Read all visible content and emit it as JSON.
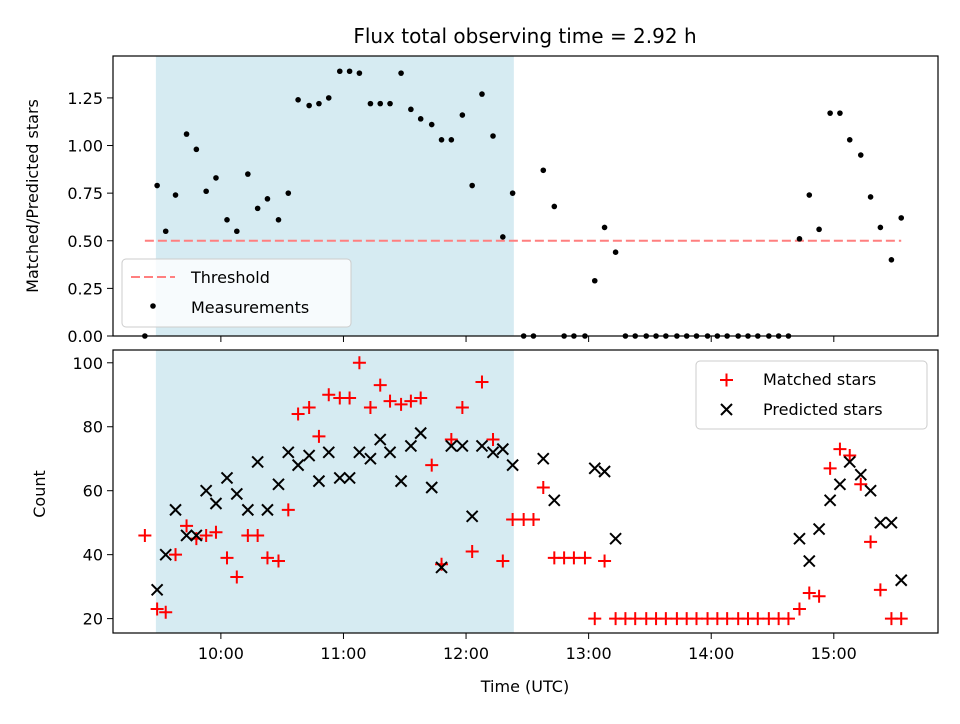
{
  "chart_data": [
    {
      "type": "scatter",
      "title": "Flux total observing time = 2.92 h",
      "xlabel": "",
      "ylabel": "Matched/Predicted stars",
      "ylim": [
        0,
        1.47
      ],
      "yticks": [
        "0.00",
        "0.25",
        "0.50",
        "0.75",
        "1.00",
        "1.25"
      ],
      "shaded_interval_hours": [
        9.47,
        12.39
      ],
      "shade_color": "#add8e6",
      "threshold": {
        "name": "Threshold",
        "value": 0.5,
        "x_range_hours": [
          9.38,
          15.55
        ],
        "color": "#ff7f7f"
      },
      "legend": [
        "Threshold",
        "Measurements"
      ],
      "legend_position": "lower-left",
      "series": [
        {
          "name": "Measurements",
          "marker": "dot",
          "color": "#000000",
          "x": [
            9.38,
            9.48,
            9.55,
            9.63,
            9.72,
            9.8,
            9.88,
            9.96,
            10.05,
            10.13,
            10.22,
            10.3,
            10.38,
            10.47,
            10.55,
            10.63,
            10.72,
            10.8,
            10.88,
            10.97,
            11.05,
            11.13,
            11.22,
            11.3,
            11.38,
            11.47,
            11.55,
            11.63,
            11.72,
            11.8,
            11.88,
            11.97,
            12.05,
            12.13,
            12.22,
            12.3,
            12.38,
            12.47,
            12.55,
            12.63,
            12.72,
            12.8,
            12.88,
            12.97,
            13.05,
            13.13,
            13.22,
            13.3,
            13.38,
            13.47,
            13.55,
            13.63,
            13.72,
            13.8,
            13.88,
            13.97,
            14.05,
            14.13,
            14.22,
            14.3,
            14.38,
            14.47,
            14.55,
            14.63,
            14.72,
            14.8,
            14.88,
            14.97,
            15.05,
            15.13,
            15.22,
            15.3,
            15.38,
            15.47,
            15.55
          ],
          "values": [
            0.0,
            0.79,
            0.55,
            0.74,
            1.06,
            0.98,
            0.76,
            0.83,
            0.61,
            0.55,
            0.85,
            0.67,
            0.72,
            0.61,
            0.75,
            1.24,
            1.21,
            1.22,
            1.25,
            1.39,
            1.39,
            1.38,
            1.22,
            1.22,
            1.22,
            1.38,
            1.19,
            1.14,
            1.11,
            1.03,
            1.03,
            1.16,
            0.79,
            1.27,
            1.05,
            0.52,
            0.75,
            0.0,
            0.0,
            0.87,
            0.68,
            0.0,
            0.0,
            0.0,
            0.29,
            0.57,
            0.44,
            0.0,
            0.0,
            0.0,
            0.0,
            0.0,
            0.0,
            0.0,
            0.0,
            0.0,
            0.0,
            0.0,
            0.0,
            0.0,
            0.0,
            0.0,
            0.0,
            0.0,
            0.51,
            0.74,
            0.56,
            1.17,
            1.17,
            1.03,
            0.95,
            0.73,
            0.57,
            0.4,
            0.62
          ]
        }
      ]
    },
    {
      "type": "scatter",
      "title": "",
      "xlabel": "Time (UTC)",
      "ylabel": "Count",
      "ylim": [
        15.5,
        104
      ],
      "yticks": [
        "20",
        "40",
        "60",
        "80",
        "100"
      ],
      "xlim_hours": [
        9.12,
        15.85
      ],
      "xticks_hours": [
        10,
        11,
        12,
        13,
        14,
        15
      ],
      "xtick_labels": [
        "10:00",
        "11:00",
        "12:00",
        "13:00",
        "14:00",
        "15:00"
      ],
      "shaded_interval_hours": [
        9.47,
        12.39
      ],
      "legend": [
        "Matched stars",
        "Predicted stars"
      ],
      "legend_position": "upper-right",
      "series": [
        {
          "name": "Matched stars",
          "marker": "plus",
          "color": "#ff0000",
          "x": [
            9.38,
            9.48,
            9.55,
            9.63,
            9.72,
            9.8,
            9.88,
            9.96,
            10.05,
            10.13,
            10.22,
            10.3,
            10.38,
            10.47,
            10.55,
            10.63,
            10.72,
            10.8,
            10.88,
            10.97,
            11.05,
            11.13,
            11.22,
            11.3,
            11.38,
            11.47,
            11.55,
            11.63,
            11.72,
            11.8,
            11.88,
            11.97,
            12.05,
            12.13,
            12.22,
            12.3,
            12.38,
            12.47,
            12.55,
            12.63,
            12.72,
            12.8,
            12.88,
            12.97,
            13.05,
            13.13,
            13.22,
            13.3,
            13.38,
            13.47,
            13.55,
            13.63,
            13.72,
            13.8,
            13.88,
            13.97,
            14.05,
            14.13,
            14.22,
            14.3,
            14.38,
            14.47,
            14.55,
            14.63,
            14.72,
            14.8,
            14.88,
            14.97,
            15.05,
            15.13,
            15.22,
            15.3,
            15.38,
            15.47,
            15.55
          ],
          "values": [
            46,
            23,
            22,
            40,
            49,
            45,
            46,
            47,
            39,
            33,
            46,
            46,
            39,
            38,
            54,
            84,
            86,
            77,
            90,
            89,
            89,
            100,
            86,
            93,
            88,
            87,
            88,
            89,
            68,
            37,
            76,
            86,
            41,
            94,
            76,
            38,
            51,
            51,
            51,
            61,
            39,
            39,
            39,
            39,
            20,
            38,
            20,
            20,
            20,
            20,
            20,
            20,
            20,
            20,
            20,
            20,
            20,
            20,
            20,
            20,
            20,
            20,
            20,
            20,
            23,
            28,
            27,
            67,
            73,
            71,
            62,
            44,
            29,
            20,
            20
          ]
        },
        {
          "name": "Predicted stars",
          "marker": "x",
          "color": "#000000",
          "x": [
            9.48,
            9.55,
            9.63,
            9.72,
            9.8,
            9.88,
            9.96,
            10.05,
            10.13,
            10.22,
            10.3,
            10.38,
            10.47,
            10.55,
            10.63,
            10.72,
            10.8,
            10.88,
            10.97,
            11.05,
            11.13,
            11.22,
            11.3,
            11.38,
            11.47,
            11.55,
            11.63,
            11.72,
            11.8,
            11.88,
            11.97,
            12.05,
            12.13,
            12.22,
            12.3,
            12.38,
            12.63,
            12.72,
            13.05,
            13.13,
            13.22,
            14.72,
            14.8,
            14.88,
            14.97,
            15.05,
            15.13,
            15.22,
            15.3,
            15.38,
            15.47,
            15.55
          ],
          "values": [
            29,
            40,
            54,
            46,
            46,
            60,
            56,
            64,
            59,
            54,
            69,
            54,
            62,
            72,
            68,
            71,
            63,
            72,
            64,
            64,
            72,
            70,
            76,
            72,
            63,
            74,
            78,
            61,
            36,
            74,
            74,
            52,
            74,
            72,
            73,
            68,
            70,
            57,
            67,
            66,
            45,
            45,
            38,
            48,
            57,
            62,
            69,
            65,
            60,
            50,
            50,
            32
          ]
        }
      ]
    }
  ]
}
